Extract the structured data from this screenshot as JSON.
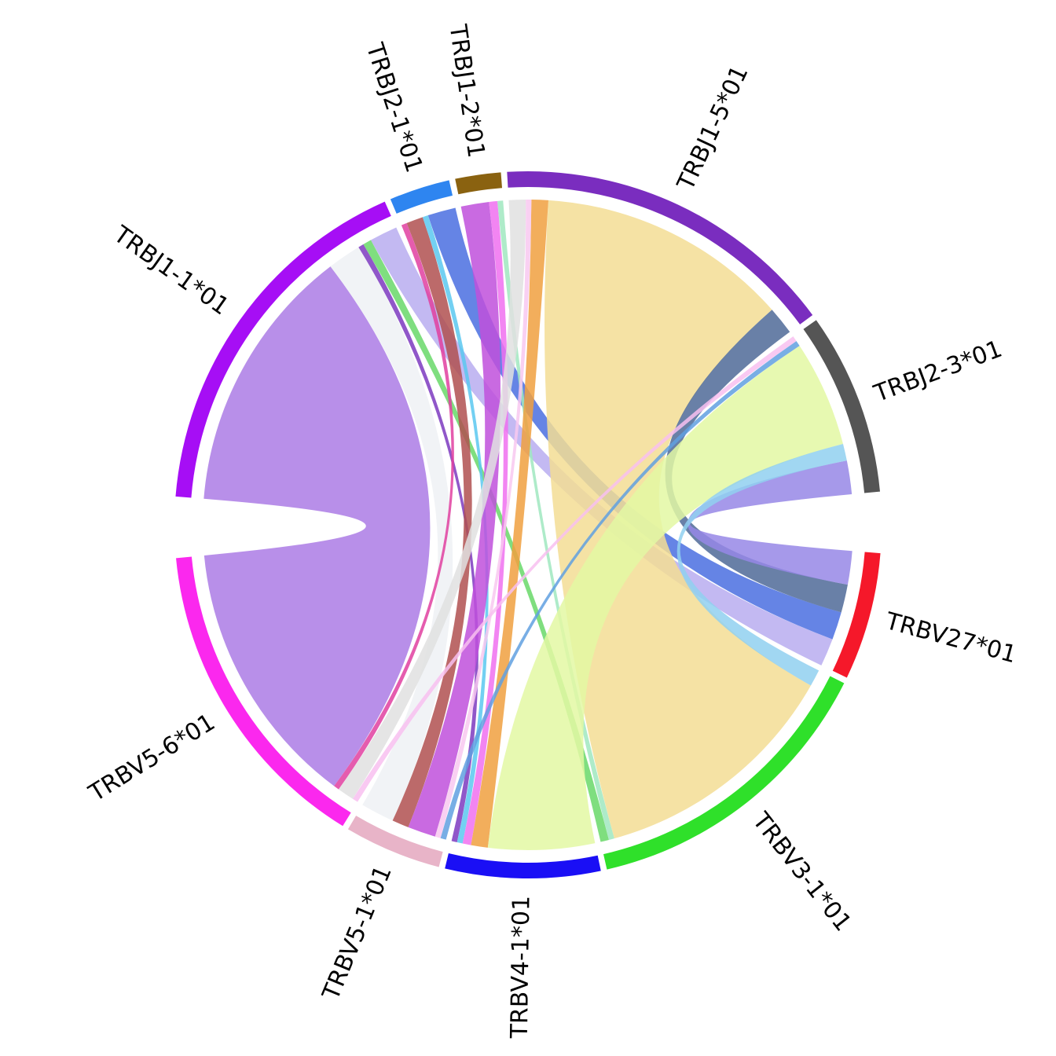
{
  "chart_data": {
    "type": "chord",
    "nodes": [
      {
        "name": "TRBJ1-1*01",
        "color": "#a60ef5",
        "value": 1230
      },
      {
        "name": "TRBJ2-1*01",
        "color": "#2e85f0",
        "value": 200
      },
      {
        "name": "TRBJ1-2*01",
        "color": "#8a6210",
        "value": 150
      },
      {
        "name": "TRBJ1-5*01",
        "color": "#7a2dbf",
        "value": 1140
      },
      {
        "name": "TRBJ2-3*01",
        "color": "#555555",
        "value": 600
      },
      {
        "name": "TRBV27*01",
        "color": "#f5182a",
        "value": 420
      },
      {
        "name": "TRBV3-1*01",
        "color": "#2fe02a",
        "value": 1010
      },
      {
        "name": "TRBV4-1*01",
        "color": "#1a0ff5",
        "value": 510
      },
      {
        "name": "TRBV5-1*01",
        "color": "#e8b4c8",
        "value": 320
      },
      {
        "name": "TRBV5-6*01",
        "color": "#fb28ee",
        "value": 1060
      }
    ],
    "links": [
      {
        "source": 0,
        "target": 9,
        "value": 960,
        "color": "#ac7be5"
      },
      {
        "source": 0,
        "target": 8,
        "value": 120,
        "color": "#eef1f5"
      },
      {
        "source": 0,
        "target": 5,
        "value": 100,
        "color": "#b8adf0"
      },
      {
        "source": 0,
        "target": 7,
        "value": 20,
        "color": "#7c3ac0"
      },
      {
        "source": 0,
        "target": 6,
        "value": 30,
        "color": "#68d868"
      },
      {
        "source": 1,
        "target": 5,
        "value": 100,
        "color": "#4a6ee0"
      },
      {
        "source": 1,
        "target": 8,
        "value": 60,
        "color": "#b05050"
      },
      {
        "source": 1,
        "target": 9,
        "value": 20,
        "color": "#e040a0"
      },
      {
        "source": 1,
        "target": 7,
        "value": 20,
        "color": "#5ac8f0"
      },
      {
        "source": 2,
        "target": 8,
        "value": 100,
        "color": "#c050dc"
      },
      {
        "source": 2,
        "target": 7,
        "value": 30,
        "color": "#f070f0"
      },
      {
        "source": 2,
        "target": 6,
        "value": 20,
        "color": "#a0e8c0"
      },
      {
        "source": 3,
        "target": 6,
        "value": 900,
        "color": "#f3dd94"
      },
      {
        "source": 3,
        "target": 5,
        "value": 100,
        "color": "#4f6a98"
      },
      {
        "source": 3,
        "target": 7,
        "value": 60,
        "color": "#f0a040"
      },
      {
        "source": 3,
        "target": 8,
        "value": 20,
        "color": "#f8c8f0"
      },
      {
        "source": 3,
        "target": 9,
        "value": 60,
        "color": "#e0e0e0"
      },
      {
        "source": 4,
        "target": 7,
        "value": 380,
        "color": "#e3f8a3"
      },
      {
        "source": 4,
        "target": 5,
        "value": 120,
        "color": "#9787e6"
      },
      {
        "source": 4,
        "target": 6,
        "value": 60,
        "color": "#90d0f0"
      },
      {
        "source": 4,
        "target": 9,
        "value": 20,
        "color": "#f8c0f0"
      },
      {
        "source": 4,
        "target": 8,
        "value": 20,
        "color": "#60a0e0"
      }
    ]
  }
}
